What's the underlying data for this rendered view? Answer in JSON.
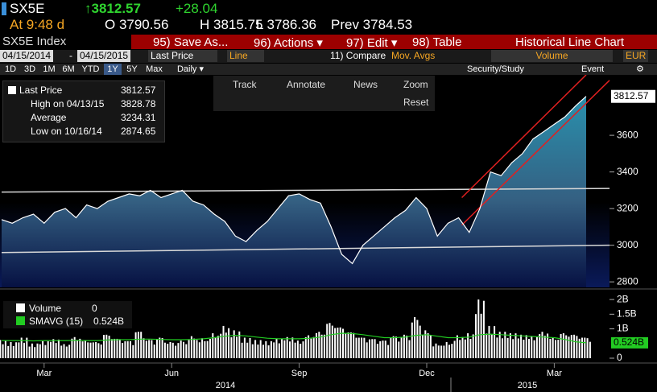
{
  "header": {
    "ticker": "SX5E",
    "last": "↑3812.57",
    "change": "+28.04",
    "time": "At 9:48 d",
    "open": "O 3790.56",
    "high": "H 3815.75",
    "low": "L 3786.36",
    "prev": "Prev 3784.53"
  },
  "toolbar": {
    "security": "SX5E Index",
    "save": "95) Save As...",
    "actions": "96) Actions ▾",
    "edit": "97) Edit ▾",
    "table": "98) Table",
    "view": "Historical Line Chart"
  },
  "settings": {
    "start": "04/15/2014",
    "dash": "-",
    "end": "04/15/2015",
    "field": "Last Price",
    "style": "Line",
    "compare": "11) Compare",
    "mov_avgs": "Mov. Avgs",
    "lower": "Volume",
    "currency": "EUR"
  },
  "periods": [
    "1D",
    "3D",
    "1M",
    "6M",
    "YTD",
    "1Y",
    "5Y",
    "Max",
    "Daily ▾"
  ],
  "right_tools": [
    "Security/Study",
    "Event",
    "⚙"
  ],
  "chart_tools": [
    "Track",
    "Annotate",
    "News",
    "Zoom",
    "Reset"
  ],
  "chart_data": [
    {
      "type": "line",
      "categories": [
        null,
        null,
        null,
        null,
        "Mar",
        null,
        null,
        null,
        null,
        null,
        null,
        null,
        null,
        null,
        null,
        null,
        "Jun",
        null,
        null,
        null,
        null,
        null,
        null,
        null,
        null,
        null,
        null,
        null,
        "Sep",
        null,
        null,
        null,
        null,
        null,
        null,
        null,
        null,
        null,
        null,
        null,
        "Dec",
        null,
        null,
        null,
        null,
        null,
        null,
        null,
        null,
        null,
        null,
        null,
        "Mar",
        null,
        null,
        null
      ],
      "year_labels": [
        "2014",
        "2015"
      ],
      "series": [
        {
          "name": "Last Price",
          "color": "#ffffff",
          "values": [
            3140,
            3120,
            3150,
            3170,
            3120,
            3180,
            3200,
            3150,
            3220,
            3200,
            3240,
            3260,
            3280,
            3270,
            3300,
            3260,
            3280,
            3300,
            3240,
            3220,
            3170,
            3130,
            3050,
            3020,
            3080,
            3130,
            3200,
            3270,
            3280,
            3250,
            3230,
            3100,
            2950,
            2900,
            3000,
            3050,
            3100,
            3150,
            3190,
            3260,
            3200,
            3050,
            3120,
            3150,
            3070,
            3200,
            3400,
            3380,
            3450,
            3500,
            3580,
            3620,
            3660,
            3700,
            3760,
            3812.57
          ]
        }
      ],
      "ylim": [
        2770,
        3930
      ],
      "yticks": [
        2800,
        3000,
        3200,
        3400,
        3600
      ],
      "legend": [
        {
          "label": "Last Price",
          "value": 3812.57
        },
        {
          "label": "High on 04/13/15",
          "value": 3828.78
        },
        {
          "label": "Average",
          "value": 3234.31
        },
        {
          "label": "Low on 10/16/14",
          "value": 2874.65
        }
      ],
      "trend_lines": [
        {
          "color": "#d8d8d8",
          "start": [
            0,
            3290
          ],
          "end": [
            57.2,
            3310
          ]
        },
        {
          "color": "#d8d8d8",
          "start": [
            0,
            2960
          ],
          "end": [
            57.2,
            3000
          ]
        },
        {
          "color": "#e02020",
          "start": [
            43.3,
            3110
          ],
          "end": [
            57.2,
            3900
          ]
        },
        {
          "color": "#e02020",
          "start": [
            43.3,
            3260
          ],
          "end": [
            55,
            3930
          ]
        }
      ]
    },
    {
      "type": "bar",
      "series": [
        {
          "name": "Volume",
          "color": "#ffffff",
          "values": [
            0.62,
            0.55,
            0.7,
            0.5,
            0.58,
            0.65,
            0.48,
            0.72,
            0.6,
            0.55,
            0.8,
            0.66,
            0.58,
            0.9,
            0.62,
            0.7,
            0.55,
            0.6,
            0.75,
            0.68,
            0.85,
            1.1,
            0.95,
            0.7,
            0.62,
            0.58,
            0.66,
            0.72,
            0.6,
            0.78,
            0.9,
            1.2,
            1.05,
            0.88,
            0.7,
            0.65,
            0.6,
            0.75,
            0.8,
            1.4,
            0.95,
            0.5,
            0.55,
            0.78,
            0.85,
            2.0,
            1.1,
            0.9,
            0.85,
            0.8,
            0.75,
            0.9,
            0.7,
            0.85,
            0.8,
            0.7
          ]
        },
        {
          "name": "SMAVG (15)",
          "color": "#22cc22",
          "values": [
            0.6,
            0.6,
            0.6,
            0.59,
            0.6,
            0.6,
            0.6,
            0.61,
            0.6,
            0.6,
            0.62,
            0.63,
            0.63,
            0.65,
            0.65,
            0.64,
            0.63,
            0.63,
            0.64,
            0.66,
            0.7,
            0.75,
            0.78,
            0.76,
            0.72,
            0.68,
            0.66,
            0.66,
            0.66,
            0.68,
            0.72,
            0.8,
            0.85,
            0.84,
            0.8,
            0.75,
            0.7,
            0.7,
            0.72,
            0.78,
            0.8,
            0.75,
            0.7,
            0.7,
            0.72,
            0.8,
            0.82,
            0.8,
            0.78,
            0.76,
            0.74,
            0.72,
            0.7,
            0.64,
            0.56,
            0.524
          ],
          "value_labels": [
            null,
            null,
            null,
            null,
            null,
            null,
            null,
            null,
            null,
            null,
            null,
            null,
            null,
            null,
            null,
            null,
            null,
            null,
            null,
            null,
            null,
            null,
            null,
            null,
            null,
            null,
            null,
            null,
            null,
            null,
            null,
            null,
            null,
            null,
            null,
            null,
            null,
            null,
            null,
            null,
            null,
            null,
            null,
            null,
            null,
            null,
            null,
            null,
            null,
            null,
            null,
            null,
            null,
            null,
            null,
            "0.524B"
          ]
        }
      ],
      "legend": [
        {
          "label": "Volume",
          "value": 0
        },
        {
          "label": "SMAVG (15)",
          "value": "0.524B"
        }
      ],
      "ylim": [
        0,
        2.25
      ],
      "yticks": [
        0,
        {
          "value": 1,
          "label": "1B"
        },
        {
          "value": 1.5,
          "label": "1.5B"
        },
        {
          "value": 2,
          "label": "2B"
        }
      ]
    }
  ]
}
